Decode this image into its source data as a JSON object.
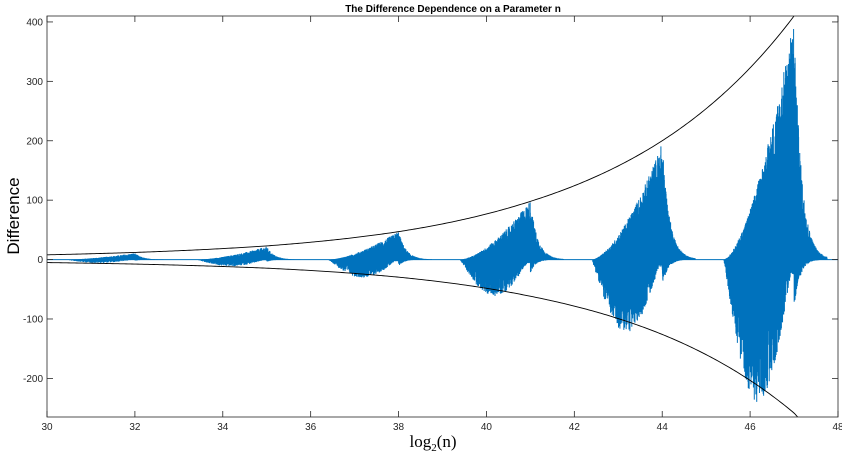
{
  "chart_data": {
    "type": "line",
    "title": "The Difference Dependence on a Parameter n",
    "xlabel": "log2(n)",
    "xlabel_display": {
      "base": "log",
      "sub": "2",
      "arg": "(n)"
    },
    "ylabel": "Difference",
    "xlim": [
      30,
      48
    ],
    "ylim": [
      -265,
      410
    ],
    "xticks": [
      30,
      32,
      34,
      36,
      38,
      40,
      42,
      44,
      46,
      48
    ],
    "yticks": [
      -200,
      -100,
      0,
      100,
      200,
      300,
      400
    ],
    "grid": false,
    "colors": {
      "signal": "#0072BD",
      "envelope": "#000000",
      "axes": "#262626"
    },
    "envelope": {
      "description_points": {
        "x": [
          30,
          32,
          35,
          38,
          41,
          44,
          47,
          48
        ],
        "upper": [
          8,
          12,
          23,
          47,
          98,
          200,
          410,
          560
        ]
      }
    },
    "bursts": [
      {
        "center": 32,
        "upper_peak": 11,
        "lower_peak": -6
      },
      {
        "center": 35,
        "upper_peak": 22,
        "lower_peak": -12
      },
      {
        "center": 38,
        "upper_peak": 48,
        "lower_peak": -32
      },
      {
        "center": 41,
        "upper_peak": 100,
        "lower_peak": -65
      },
      {
        "center": 44,
        "upper_peak": 198,
        "lower_peak": -130
      },
      {
        "center": 47,
        "upper_peak": 408,
        "lower_peak": -255
      }
    ]
  }
}
